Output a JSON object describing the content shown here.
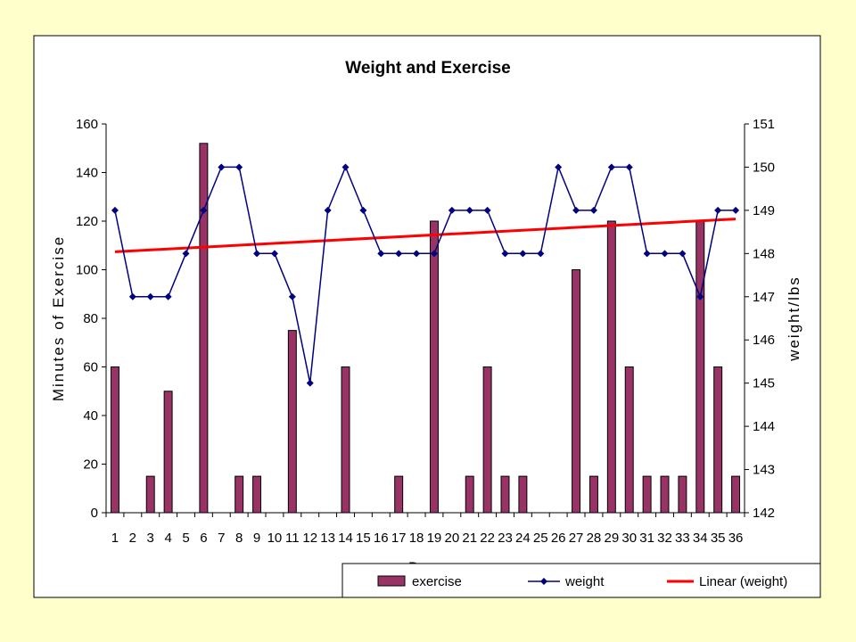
{
  "chart_data": {
    "type": "bar",
    "title": "Weight and Exercise",
    "xlabel": "D",
    "ylabel": "Minutes of Exercise",
    "y2label": "weight/lbs",
    "ylim": [
      0,
      160
    ],
    "y2lim": [
      142,
      151
    ],
    "yticks": [
      0,
      20,
      40,
      60,
      80,
      100,
      120,
      140,
      160
    ],
    "y2ticks": [
      142,
      143,
      144,
      145,
      146,
      147,
      148,
      149,
      150,
      151
    ],
    "categories": [
      "1",
      "2",
      "3",
      "4",
      "5",
      "6",
      "7",
      "8",
      "9",
      "10",
      "11",
      "12",
      "13",
      "14",
      "15",
      "16",
      "17",
      "18",
      "19",
      "20",
      "21",
      "22",
      "23",
      "24",
      "25",
      "26",
      "27",
      "28",
      "29",
      "30",
      "31",
      "32",
      "33",
      "34",
      "35",
      "36"
    ],
    "series": [
      {
        "name": "exercise",
        "type": "bar",
        "axis": "left",
        "color": "#993366",
        "values": [
          60,
          0,
          15,
          50,
          0,
          152,
          0,
          15,
          15,
          0,
          75,
          0,
          0,
          60,
          0,
          0,
          15,
          0,
          120,
          0,
          15,
          60,
          15,
          15,
          0,
          0,
          100,
          15,
          120,
          60,
          15,
          15,
          15,
          120,
          60,
          15
        ]
      },
      {
        "name": "weight",
        "type": "line",
        "axis": "right",
        "color": "#000080",
        "values": [
          149,
          147,
          147,
          147,
          148,
          149,
          150,
          150,
          148,
          148,
          147,
          145,
          149,
          150,
          149,
          148,
          148,
          148,
          148,
          149,
          149,
          149,
          148,
          148,
          148,
          150,
          149,
          149,
          150,
          150,
          148,
          148,
          148,
          147,
          149,
          149
        ]
      },
      {
        "name": "Linear (weight)",
        "type": "trendline",
        "axis": "right",
        "color": "#ff0000",
        "start": 148.04,
        "end": 148.8
      }
    ],
    "legend": {
      "placement": "bottom-right"
    },
    "grid": false
  }
}
